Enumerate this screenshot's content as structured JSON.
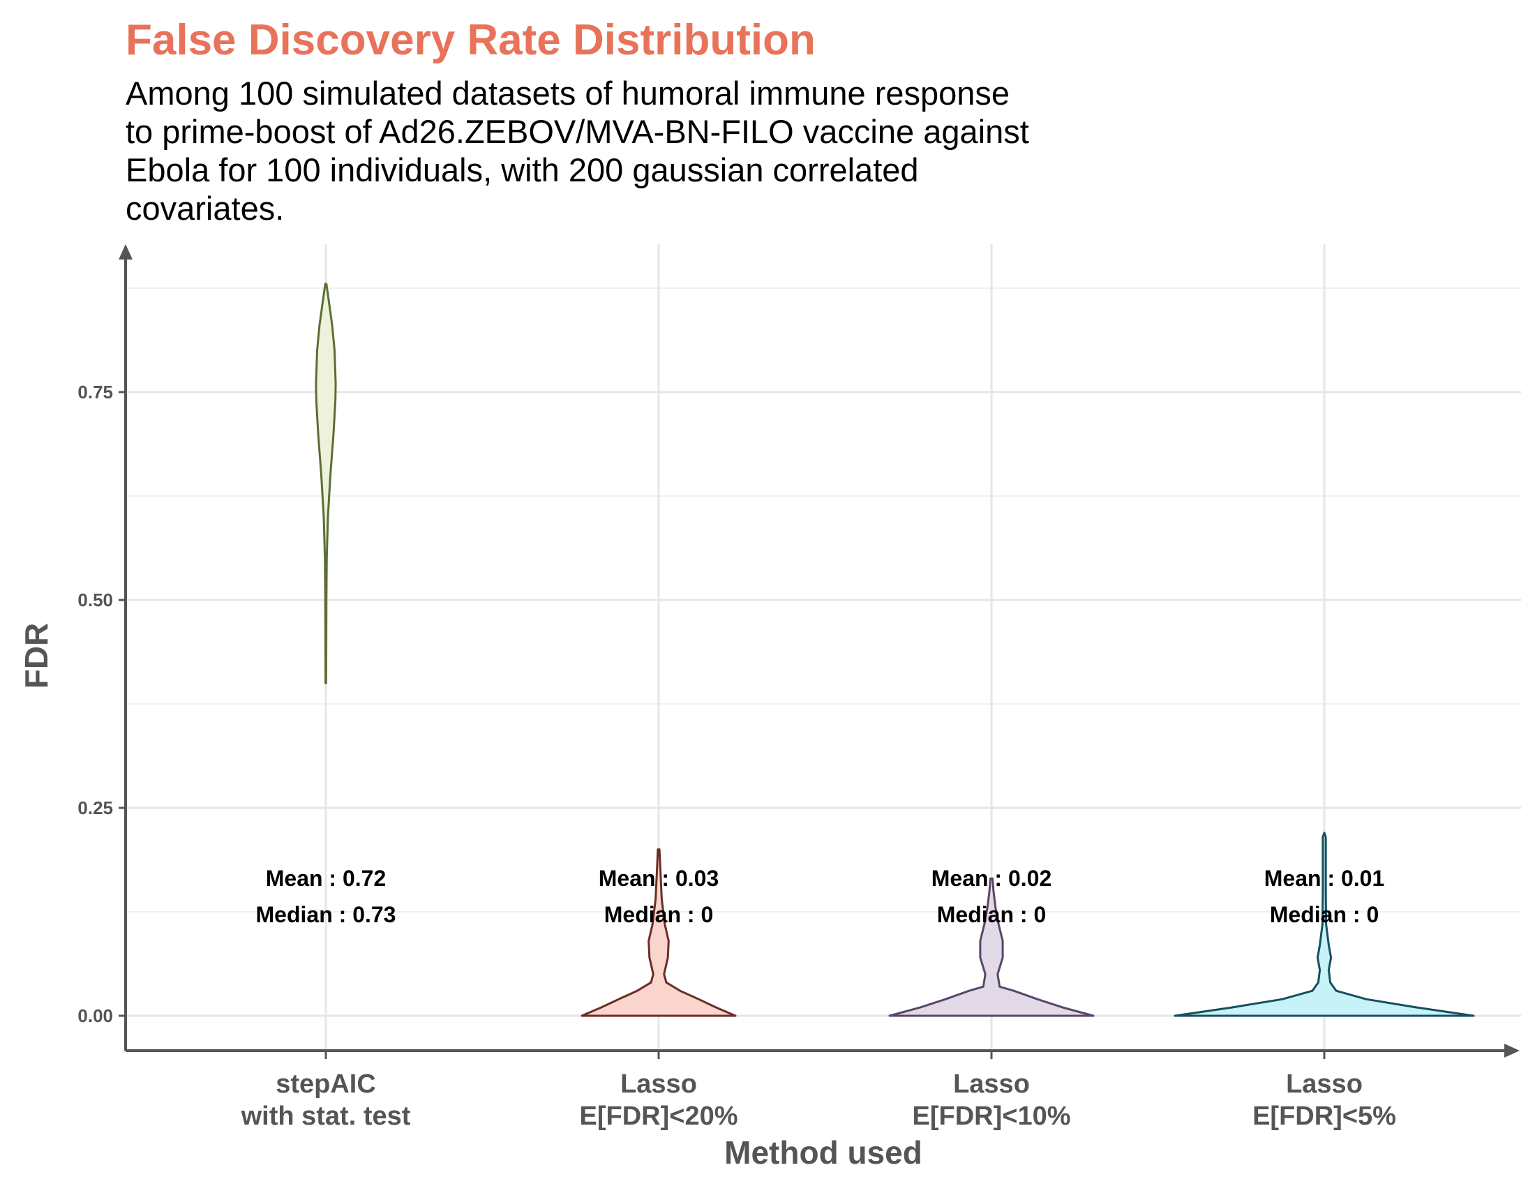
{
  "chart_data": {
    "type": "violin",
    "title": "False Discovery Rate Distribution",
    "subtitle_lines": [
      "Among 100 simulated datasets of humoral immune response",
      "to prime-boost of Ad26.ZEBOV/MVA-BN-FILO vaccine against",
      "Ebola for 100 individuals, with 200 gaussian correlated",
      "covariates."
    ],
    "xlabel": "Method used",
    "ylabel": "FDR",
    "ylim": [
      -0.045,
      0.93
    ],
    "yticks": [
      0.0,
      0.25,
      0.5,
      0.75
    ],
    "ytick_labels": [
      "0.00",
      "0.25",
      "0.50",
      "0.75"
    ],
    "yminor": [
      0.125,
      0.375,
      0.625,
      0.875
    ],
    "grid": true,
    "legend": "none",
    "categories": [
      {
        "line1": "stepAIC",
        "line2": "with stat. test"
      },
      {
        "line1": "Lasso",
        "line2": "E[FDR]<20%"
      },
      {
        "line1": "Lasso",
        "line2": "E[FDR]<10%"
      },
      {
        "line1": "Lasso",
        "line2": "E[FDR]<5%"
      }
    ],
    "series": [
      {
        "fill": "#EEF2DC",
        "stroke": "#5C6E33",
        "mean_label": "Mean : 0.72",
        "median_label": "Median : 0.73",
        "density": [
          [
            0.4,
            0.01
          ],
          [
            0.45,
            0.015
          ],
          [
            0.5,
            0.02
          ],
          [
            0.55,
            0.035
          ],
          [
            0.6,
            0.08
          ],
          [
            0.65,
            0.17
          ],
          [
            0.7,
            0.29
          ],
          [
            0.74,
            0.36
          ],
          [
            0.76,
            0.37
          ],
          [
            0.8,
            0.33
          ],
          [
            0.83,
            0.24
          ],
          [
            0.86,
            0.11
          ],
          [
            0.88,
            0.02
          ]
        ]
      },
      {
        "fill": "#F9D5CD",
        "stroke": "#6B2E25",
        "mean_label": "Mean : 0.03",
        "median_label": "Median : 0",
        "density": [
          [
            0.0,
            1.0
          ],
          [
            0.01,
            0.75
          ],
          [
            0.02,
            0.52
          ],
          [
            0.03,
            0.28
          ],
          [
            0.04,
            0.1
          ],
          [
            0.05,
            0.07
          ],
          [
            0.07,
            0.12
          ],
          [
            0.09,
            0.13
          ],
          [
            0.11,
            0.08
          ],
          [
            0.14,
            0.04
          ],
          [
            0.17,
            0.025
          ],
          [
            0.2,
            0.01
          ]
        ]
      },
      {
        "fill": "#E3DAE8",
        "stroke": "#5B456A",
        "mean_label": "Mean : 0.02",
        "median_label": "Median : 0",
        "density": [
          [
            0.0,
            1.0
          ],
          [
            0.01,
            0.7
          ],
          [
            0.02,
            0.45
          ],
          [
            0.03,
            0.22
          ],
          [
            0.035,
            0.08
          ],
          [
            0.05,
            0.06
          ],
          [
            0.07,
            0.11
          ],
          [
            0.09,
            0.11
          ],
          [
            0.11,
            0.07
          ],
          [
            0.13,
            0.04
          ],
          [
            0.15,
            0.02
          ],
          [
            0.165,
            0.01
          ]
        ]
      },
      {
        "fill": "#C7F2F8",
        "stroke": "#164F5E",
        "mean_label": "Mean : 0.01",
        "median_label": "Median : 0",
        "density": [
          [
            0.0,
            1.0
          ],
          [
            0.01,
            0.62
          ],
          [
            0.02,
            0.28
          ],
          [
            0.03,
            0.08
          ],
          [
            0.04,
            0.04
          ],
          [
            0.055,
            0.03
          ],
          [
            0.07,
            0.045
          ],
          [
            0.085,
            0.03
          ],
          [
            0.11,
            0.012
          ],
          [
            0.15,
            0.01
          ],
          [
            0.19,
            0.01
          ],
          [
            0.215,
            0.01
          ],
          [
            0.22,
            0.0
          ]
        ]
      }
    ]
  }
}
